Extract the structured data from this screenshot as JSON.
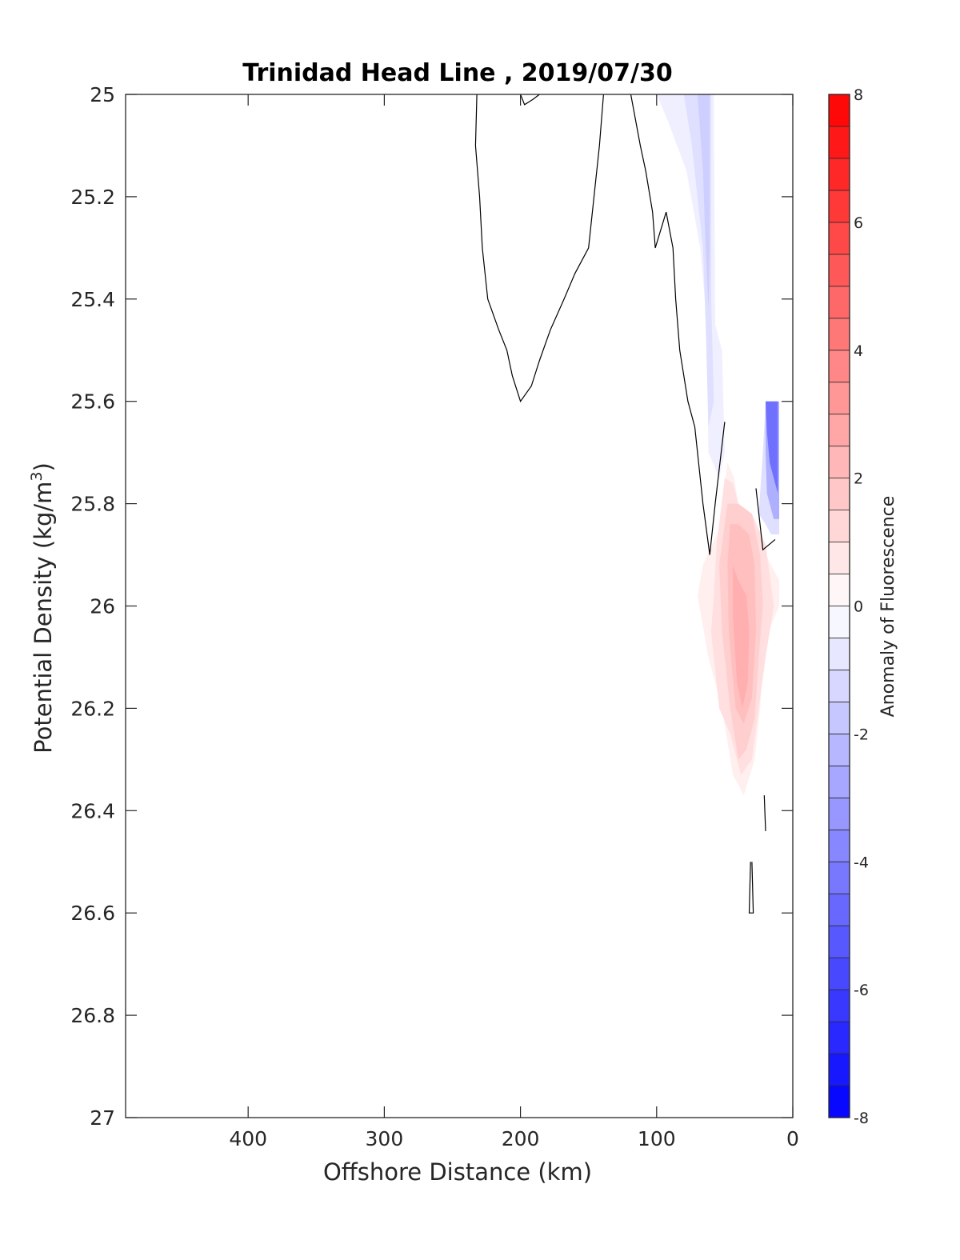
{
  "chart_data": {
    "type": "contour",
    "title": "Trinidad Head Line , 2019/07/30",
    "xlabel": "Offshore Distance (km)",
    "ylabel_main": "Potential Density (kg/m",
    "ylabel_sup": "3",
    "ylabel_close": ")",
    "xlim": [
      490,
      0
    ],
    "ylim": [
      25,
      27
    ],
    "x_reversed": true,
    "y_reversed": true,
    "xticks": [
      400,
      300,
      200,
      100,
      0
    ],
    "yticks": [
      25,
      25.2,
      25.4,
      25.6,
      25.8,
      26,
      26.2,
      26.4,
      26.6,
      26.8,
      27
    ],
    "ytick_labels": [
      "25",
      "25.2",
      "25.4",
      "25.6",
      "25.8",
      "26",
      "26.2",
      "26.4",
      "26.6",
      "26.8",
      "27"
    ],
    "grid": false,
    "colorbar": {
      "label": "Anomaly of Fluorescence",
      "range": [
        -8,
        8
      ],
      "step": 0.5,
      "ticks": [
        8,
        6,
        4,
        2,
        0,
        -2,
        -4,
        -6,
        -8
      ],
      "colormap": "blue-white-red",
      "high_color": "#ff0000",
      "low_color": "#0000ff",
      "mid_color": "#ffffff"
    },
    "filled_regions": [
      {
        "level": -0.5,
        "points": [
          [
            100,
            25.0
          ],
          [
            58,
            25.0
          ],
          [
            57,
            25.45
          ],
          [
            52,
            25.5
          ],
          [
            50,
            25.7
          ],
          [
            54,
            25.75
          ],
          [
            62,
            25.7
          ],
          [
            63,
            25.45
          ],
          [
            68,
            25.3
          ],
          [
            78,
            25.15
          ],
          [
            92,
            25.05
          ]
        ]
      },
      {
        "level": -1.0,
        "points": [
          [
            80,
            25.0
          ],
          [
            60,
            25.0
          ],
          [
            60,
            25.4
          ],
          [
            58,
            25.6
          ],
          [
            62,
            25.65
          ],
          [
            64,
            25.45
          ],
          [
            66,
            25.3
          ],
          [
            74,
            25.1
          ]
        ]
      },
      {
        "level": -1.5,
        "points": [
          [
            70,
            25.0
          ],
          [
            61,
            25.0
          ],
          [
            61,
            25.3
          ],
          [
            62,
            25.42
          ],
          [
            64,
            25.3
          ],
          [
            66,
            25.15
          ]
        ]
      },
      {
        "level": -1.0,
        "points": [
          [
            20,
            25.6
          ],
          [
            10,
            25.6
          ],
          [
            10,
            25.86
          ],
          [
            16,
            25.86
          ],
          [
            20,
            25.84
          ],
          [
            25,
            25.82
          ],
          [
            22,
            25.7
          ]
        ]
      },
      {
        "level": -2.5,
        "points": [
          [
            20,
            25.6
          ],
          [
            10,
            25.6
          ],
          [
            10,
            25.83
          ],
          [
            14,
            25.83
          ],
          [
            19,
            25.78
          ],
          [
            20,
            25.7
          ]
        ]
      },
      {
        "level": -4.5,
        "points": [
          [
            20,
            25.6
          ],
          [
            11,
            25.6
          ],
          [
            11,
            25.78
          ],
          [
            17,
            25.72
          ],
          [
            19,
            25.66
          ]
        ]
      },
      {
        "level": 0.5,
        "points": [
          [
            48,
            25.72
          ],
          [
            43,
            25.75
          ],
          [
            37,
            25.85
          ],
          [
            30,
            25.85
          ],
          [
            20,
            25.9
          ],
          [
            10,
            25.95
          ],
          [
            10,
            26.0
          ],
          [
            18,
            26.05
          ],
          [
            22,
            26.1
          ],
          [
            24,
            26.2
          ],
          [
            28,
            26.3
          ],
          [
            36,
            26.37
          ],
          [
            44,
            26.33
          ],
          [
            52,
            26.2
          ],
          [
            62,
            26.1
          ],
          [
            70,
            25.98
          ],
          [
            66,
            25.92
          ],
          [
            54,
            25.85
          ]
        ]
      },
      {
        "level": 1.0,
        "points": [
          [
            50,
            25.75
          ],
          [
            44,
            25.76
          ],
          [
            40,
            25.8
          ],
          [
            30,
            25.82
          ],
          [
            20,
            25.88
          ],
          [
            14,
            26.0
          ],
          [
            20,
            26.1
          ],
          [
            25,
            26.2
          ],
          [
            30,
            26.3
          ],
          [
            38,
            26.33
          ],
          [
            46,
            26.25
          ],
          [
            54,
            26.2
          ],
          [
            60,
            26.05
          ],
          [
            58,
            25.98
          ],
          [
            56,
            25.88
          ]
        ]
      },
      {
        "level": 1.5,
        "points": [
          [
            48,
            25.8
          ],
          [
            40,
            25.8
          ],
          [
            30,
            25.82
          ],
          [
            24,
            25.9
          ],
          [
            22,
            26.0
          ],
          [
            25,
            26.1
          ],
          [
            28,
            26.22
          ],
          [
            34,
            26.28
          ],
          [
            40,
            26.3
          ],
          [
            46,
            26.2
          ],
          [
            52,
            26.05
          ],
          [
            54,
            25.92
          ]
        ]
      },
      {
        "level": 2.0,
        "points": [
          [
            46,
            25.84
          ],
          [
            40,
            25.84
          ],
          [
            32,
            25.86
          ],
          [
            28,
            25.92
          ],
          [
            27,
            26.05
          ],
          [
            30,
            26.18
          ],
          [
            36,
            26.23
          ],
          [
            42,
            26.2
          ],
          [
            47,
            26.05
          ],
          [
            48,
            25.92
          ]
        ]
      },
      {
        "level": 2.5,
        "points": [
          [
            44,
            25.92
          ],
          [
            40,
            25.95
          ],
          [
            34,
            25.98
          ],
          [
            32,
            26.05
          ],
          [
            33,
            26.15
          ],
          [
            37,
            26.2
          ],
          [
            41,
            26.15
          ],
          [
            44,
            26.02
          ]
        ]
      }
    ],
    "zero_contours": [
      [
        [
          232,
          25.0
        ],
        [
          233,
          25.1
        ],
        [
          230,
          25.2
        ],
        [
          228,
          25.3
        ],
        [
          224,
          25.4
        ],
        [
          216,
          25.46
        ],
        [
          210,
          25.5
        ],
        [
          206,
          25.55
        ],
        [
          200,
          25.6
        ],
        [
          192,
          25.57
        ],
        [
          186,
          25.52
        ],
        [
          178,
          25.46
        ],
        [
          168,
          25.4
        ],
        [
          160,
          25.35
        ],
        [
          150,
          25.3
        ],
        [
          146,
          25.2
        ],
        [
          142,
          25.1
        ],
        [
          139,
          25.0
        ]
      ],
      [
        [
          200,
          25.0
        ],
        [
          197,
          25.02
        ],
        [
          191,
          25.01
        ],
        [
          186,
          25.0
        ]
      ],
      [
        [
          119,
          25.0
        ],
        [
          112,
          25.1
        ],
        [
          108,
          25.15
        ],
        [
          103,
          25.23
        ],
        [
          101,
          25.3
        ],
        [
          93,
          25.23
        ],
        [
          88,
          25.3
        ],
        [
          86,
          25.4
        ],
        [
          83,
          25.5
        ],
        [
          77,
          25.6
        ],
        [
          72,
          25.65
        ],
        [
          66,
          25.8
        ],
        [
          61,
          25.9
        ],
        [
          57,
          25.8
        ],
        [
          50,
          25.64
        ]
      ],
      [
        [
          27,
          25.77
        ],
        [
          22,
          25.89
        ],
        [
          13,
          25.87
        ]
      ],
      [
        [
          21,
          26.37
        ],
        [
          20,
          26.44
        ]
      ],
      [
        [
          30,
          26.5
        ],
        [
          29,
          26.6
        ],
        [
          32,
          26.6
        ],
        [
          31,
          26.5
        ]
      ]
    ]
  }
}
